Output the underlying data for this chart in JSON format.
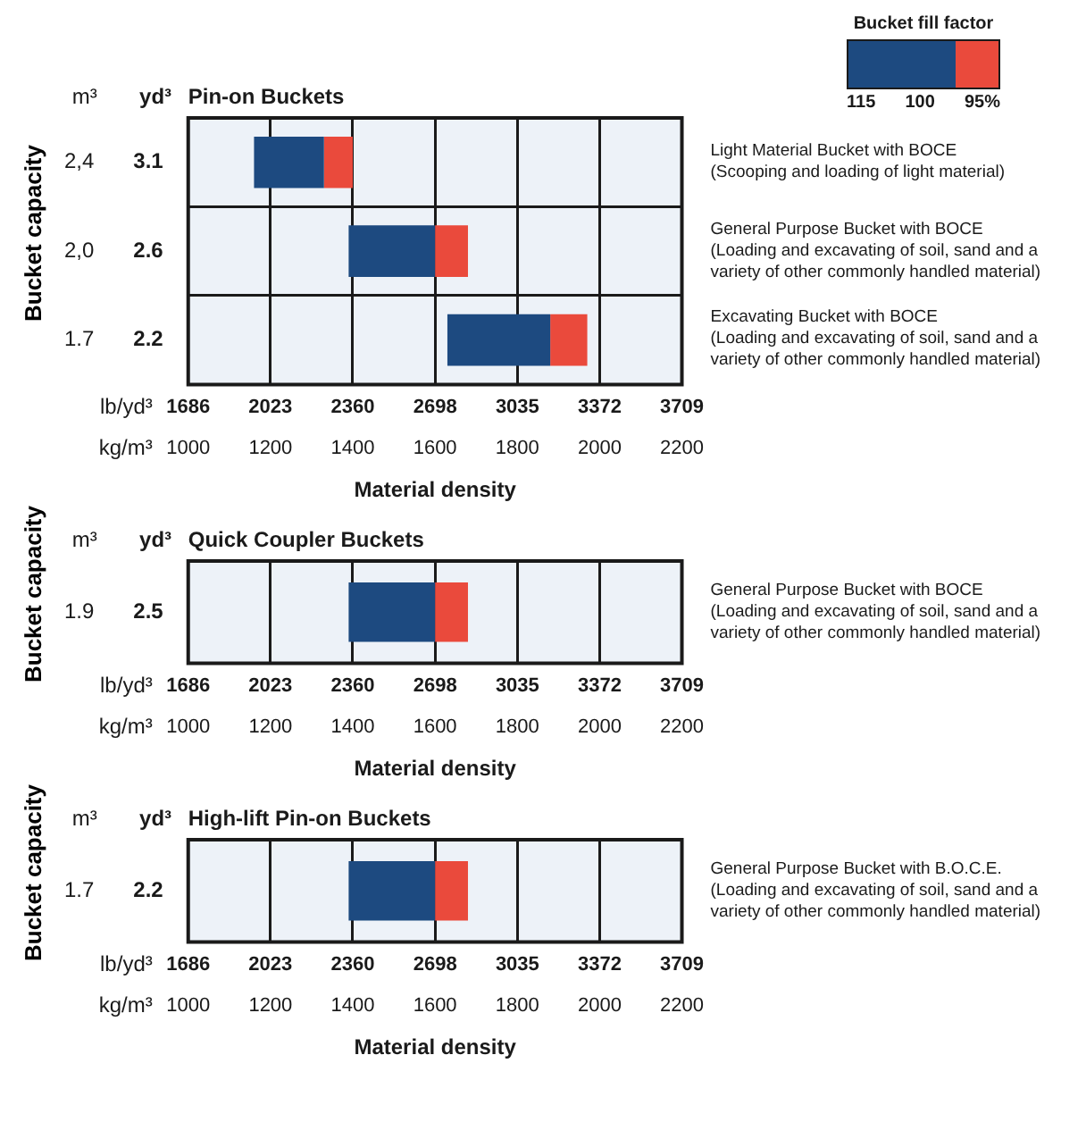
{
  "chart_data": [
    {
      "type": "bar",
      "orientation": "horizontal",
      "title": "Pin-on Buckets",
      "ylabel": "Bucket capacity",
      "xlabel": "Material density",
      "x2label": "lb/yd³",
      "legend_title": "Bucket fill factor",
      "grid": true,
      "categories": [
        "2,4",
        "2,0",
        "1.7"
      ],
      "y2_categories": [
        "3.1",
        "2.6",
        "2.2"
      ],
      "series": [
        {
          "color": "#1d4a80",
          "base": [
            1160,
            1390,
            1630
          ],
          "values": [
            170,
            210,
            250
          ]
        },
        {
          "color": "#ea4a3c",
          "base": [
            1330,
            1600,
            1880
          ],
          "values": [
            70,
            80,
            90
          ]
        }
      ],
      "xlim": [
        1000,
        2200
      ],
      "xticks": [
        1000,
        1200,
        1400,
        1600,
        1800,
        2000,
        2200
      ],
      "x2lim": [
        1686,
        3709
      ],
      "x2ticks": [
        1686,
        2023,
        2360,
        2698,
        3035,
        3372,
        3709
      ],
      "annotations": [
        "m³",
        "yd³",
        "kg/m³",
        "Light Material Bucket with BOCE\n(Scooping and loading of light material)",
        "General Purpose Bucket with BOCE\n(Loading and excavating of soil, sand and a\nvariety of other commonly handled material)",
        "Excavating Bucket with BOCE\n(Loading and excavating of soil, sand and a\nvariety of other commonly handled material)",
        "115",
        "100",
        "95%"
      ]
    },
    {
      "type": "bar",
      "orientation": "horizontal",
      "title": "Quick Coupler Buckets",
      "ylabel": "Bucket capacity",
      "xlabel": "Material density",
      "x2label": "lb/yd³",
      "grid": true,
      "categories": [
        "1.9"
      ],
      "y2_categories": [
        "2.5"
      ],
      "series": [
        {
          "color": "#1d4a80",
          "base": [
            1390
          ],
          "values": [
            210
          ]
        },
        {
          "color": "#ea4a3c",
          "base": [
            1600
          ],
          "values": [
            80
          ]
        }
      ],
      "xlim": [
        1000,
        2200
      ],
      "xticks": [
        1000,
        1200,
        1400,
        1600,
        1800,
        2000,
        2200
      ],
      "x2lim": [
        1686,
        3709
      ],
      "x2ticks": [
        1686,
        2023,
        2360,
        2698,
        3035,
        3372,
        3709
      ],
      "annotations": [
        "m³",
        "yd³",
        "kg/m³",
        "General Purpose Bucket with BOCE\n(Loading and excavating of soil, sand and a\nvariety of other commonly handled material)"
      ]
    },
    {
      "type": "bar",
      "orientation": "horizontal",
      "title": "High-lift Pin-on Buckets",
      "ylabel": "Bucket capacity",
      "xlabel": "Material density",
      "x2label": "lb/yd³",
      "grid": true,
      "categories": [
        "1.7"
      ],
      "y2_categories": [
        "2.2"
      ],
      "series": [
        {
          "color": "#1d4a80",
          "base": [
            1390
          ],
          "values": [
            210
          ]
        },
        {
          "color": "#ea4a3c",
          "base": [
            1600
          ],
          "values": [
            80
          ]
        }
      ],
      "xlim": [
        1000,
        2200
      ],
      "xticks": [
        1000,
        1200,
        1400,
        1600,
        1800,
        2000,
        2200
      ],
      "x2lim": [
        1686,
        3709
      ],
      "x2ticks": [
        1686,
        2023,
        2360,
        2698,
        3035,
        3372,
        3709
      ],
      "annotations": [
        "m³",
        "yd³",
        "kg/m³",
        "General Purpose Bucket with B.O.C.E.\n(Loading and excavating of soil, sand and a\nvariety of other commonly handled material)"
      ]
    }
  ]
}
